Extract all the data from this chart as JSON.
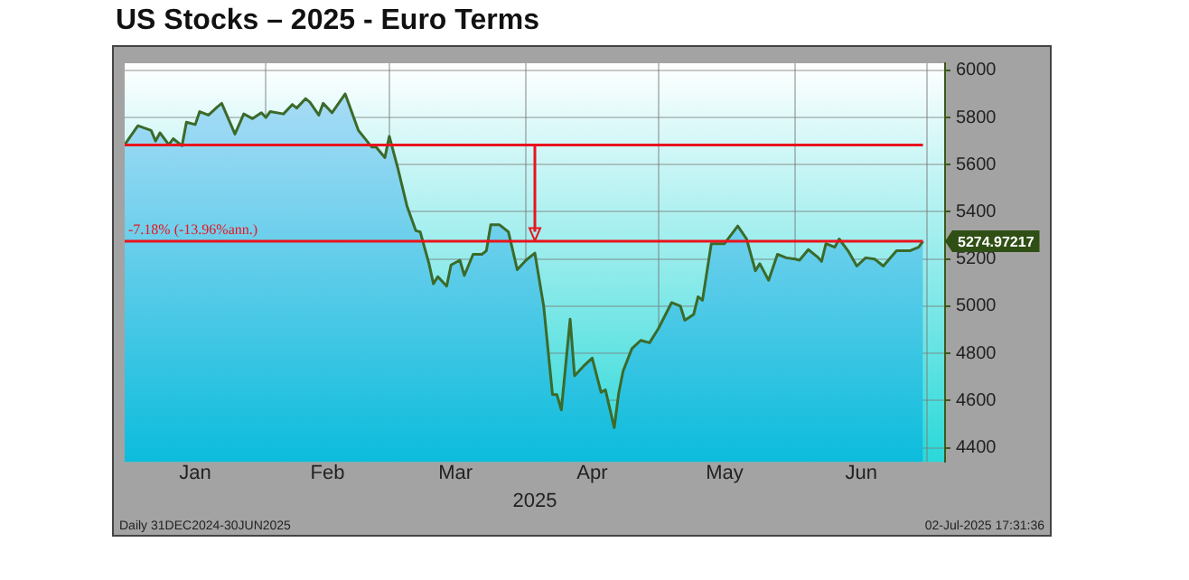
{
  "chart_data": {
    "type": "area",
    "title": "US Stocks – 2025 - Euro Terms",
    "xlabel": "2025",
    "x": [
      "2024-12-31",
      "2025-01-03",
      "2025-01-06",
      "2025-01-07",
      "2025-01-08",
      "2025-01-10",
      "2025-01-11",
      "2025-01-13",
      "2025-01-14",
      "2025-01-16",
      "2025-01-17",
      "2025-01-19",
      "2025-01-21",
      "2025-01-22",
      "2025-01-25",
      "2025-01-27",
      "2025-01-29",
      "2025-01-31",
      "2025-02-01",
      "2025-02-02",
      "2025-02-05",
      "2025-02-07",
      "2025-02-08",
      "2025-02-10",
      "2025-02-11",
      "2025-02-13",
      "2025-02-14",
      "2025-02-16",
      "2025-02-19",
      "2025-02-22",
      "2025-02-25",
      "2025-02-26",
      "2025-02-28",
      "2025-03-01",
      "2025-03-03",
      "2025-03-05",
      "2025-03-07",
      "2025-03-08",
      "2025-03-10",
      "2025-03-11",
      "2025-03-12",
      "2025-03-14",
      "2025-03-15",
      "2025-03-17",
      "2025-03-18",
      "2025-03-20",
      "2025-03-22",
      "2025-03-23",
      "2025-03-24",
      "2025-03-26",
      "2025-03-28",
      "2025-03-30",
      "2025-04-01",
      "2025-04-03",
      "2025-04-05",
      "2025-04-07",
      "2025-04-08",
      "2025-04-09",
      "2025-04-11",
      "2025-04-12",
      "2025-04-14",
      "2025-04-16",
      "2025-04-18",
      "2025-04-19",
      "2025-04-21",
      "2025-04-22",
      "2025-04-23",
      "2025-04-25",
      "2025-04-27",
      "2025-04-29",
      "2025-05-01",
      "2025-05-04",
      "2025-05-06",
      "2025-05-07",
      "2025-05-09",
      "2025-05-10",
      "2025-05-11",
      "2025-05-13",
      "2025-05-16",
      "2025-05-19",
      "2025-05-21",
      "2025-05-23",
      "2025-05-24",
      "2025-05-26",
      "2025-05-28",
      "2025-05-30",
      "2025-06-01",
      "2025-06-02",
      "2025-06-04",
      "2025-06-06",
      "2025-06-07",
      "2025-06-08",
      "2025-06-10",
      "2025-06-11",
      "2025-06-13",
      "2025-06-15",
      "2025-06-17",
      "2025-06-19",
      "2025-06-21",
      "2025-06-24",
      "2025-06-27",
      "2025-06-29",
      "2025-06-30"
    ],
    "series": [
      {
        "color": "#3b6a2a",
        "values": [
          5685,
          5765,
          5745,
          5700,
          5735,
          5685,
          5710,
          5680,
          5780,
          5770,
          5825,
          5810,
          5845,
          5860,
          5730,
          5815,
          5795,
          5820,
          5800,
          5825,
          5815,
          5855,
          5840,
          5880,
          5865,
          5810,
          5860,
          5820,
          5900,
          5745,
          5675,
          5675,
          5630,
          5720,
          5580,
          5425,
          5320,
          5315,
          5180,
          5095,
          5125,
          5085,
          5175,
          5195,
          5130,
          5220,
          5220,
          5235,
          5345,
          5345,
          5315,
          5155,
          5195,
          5225,
          5000,
          4625,
          4625,
          4560,
          4945,
          4705,
          4745,
          4780,
          4635,
          4645,
          4485,
          4630,
          4725,
          4820,
          4855,
          4845,
          4905,
          5015,
          5000,
          4940,
          4965,
          5040,
          5025,
          5265,
          5265,
          5340,
          5285,
          5150,
          5180,
          5110,
          5220,
          5205,
          5200,
          5195,
          5240,
          5210,
          5190,
          5265,
          5250,
          5285,
          5235,
          5170,
          5205,
          5200,
          5170,
          5235,
          5235,
          5250,
          5275
        ]
      }
    ],
    "xlim": [
      "2024-12-31",
      "2025-07-05"
    ],
    "xticks": [
      {
        "value": "2025-01-16",
        "label": "Jan"
      },
      {
        "value": "2025-02-01",
        "label": null
      },
      {
        "value": "2025-02-15",
        "label": "Feb"
      },
      {
        "value": "2025-03-01",
        "label": null
      },
      {
        "value": "2025-03-16",
        "label": "Mar"
      },
      {
        "value": "2025-04-01",
        "label": null
      },
      {
        "value": "2025-04-16",
        "label": "Apr"
      },
      {
        "value": "2025-05-01",
        "label": null
      },
      {
        "value": "2025-05-16",
        "label": "May"
      },
      {
        "value": "2025-06-01",
        "label": null
      },
      {
        "value": "2025-06-16",
        "label": "Jun"
      },
      {
        "value": "2025-07-01",
        "label": null
      }
    ],
    "ylim": [
      4340,
      6030
    ],
    "yticks": [
      4400,
      4600,
      4800,
      5000,
      5200,
      5400,
      5600,
      5800,
      6000
    ],
    "grid": true,
    "legend": false,
    "marker": "none",
    "line_style": "solid",
    "ref_lines": [
      {
        "axis": "y",
        "value": 5683,
        "color": "#e8141e"
      },
      {
        "axis": "y",
        "value": 5275,
        "color": "#e8141e",
        "label": "-7.18% (-13.96%ann.)"
      }
    ],
    "annotations": [
      {
        "text": "5274.97217",
        "x": "2025-06-30",
        "y": 5274.97217
      },
      "Daily 31DEC2024-30JUN2025",
      "02-Jul-2025 17:31:36"
    ]
  }
}
